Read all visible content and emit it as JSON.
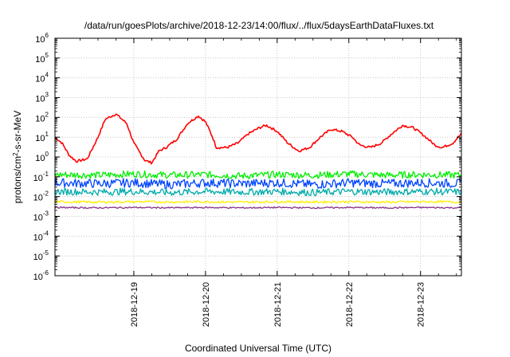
{
  "chart_data": {
    "type": "line",
    "title": "/data/run/goesPlots/archive/2018-12-23/14:00/flux/../flux/5daysEarthDataFluxes.txt",
    "xlabel": "Coordinated Universal Time (UTC)",
    "ylabel": {
      "base": "protons/cm",
      "sup": "2",
      "rest": "-s-sr-MeV"
    },
    "y_scale": "log",
    "ylim_exp": [
      -6,
      6
    ],
    "y_ticks": [
      {
        "exp": 6,
        "base": "10",
        "sup": "6"
      },
      {
        "exp": 5,
        "base": "10",
        "sup": "5"
      },
      {
        "exp": 4,
        "base": "10",
        "sup": "4"
      },
      {
        "exp": 3,
        "base": "10",
        "sup": "3"
      },
      {
        "exp": 2,
        "base": "10",
        "sup": "2"
      },
      {
        "exp": 1,
        "base": "10",
        "sup": "1"
      },
      {
        "exp": 0,
        "base": "10",
        "sup": "0"
      },
      {
        "exp": -1,
        "base": "10",
        "sup": "-1"
      },
      {
        "exp": -2,
        "base": "10",
        "sup": "-2"
      },
      {
        "exp": -3,
        "base": "10",
        "sup": "-3"
      },
      {
        "exp": -4,
        "base": "10",
        "sup": "-4"
      },
      {
        "exp": -5,
        "base": "10",
        "sup": "-5"
      },
      {
        "exp": -6,
        "base": "10",
        "sup": "-6"
      }
    ],
    "x_range_days": [
      17.9,
      23.57
    ],
    "x_ticks": [
      {
        "day": 19,
        "label": "2018-12-19"
      },
      {
        "day": 20,
        "label": "2018-12-20"
      },
      {
        "day": 21,
        "label": "2018-12-21"
      },
      {
        "day": 22,
        "label": "2018-12-22"
      },
      {
        "day": 23,
        "label": "2018-12-23"
      }
    ],
    "grid": true,
    "series": [
      {
        "color": "#ff0000",
        "x_days": [
          17.9,
          18.0,
          18.1,
          18.2,
          18.35,
          18.5,
          18.6,
          18.75,
          18.9,
          19.0,
          19.15,
          19.25,
          19.35,
          19.45,
          19.6,
          19.75,
          19.9,
          20.0,
          20.1,
          20.15,
          20.3,
          20.45,
          20.6,
          20.75,
          20.85,
          21.0,
          21.15,
          21.3,
          21.45,
          21.6,
          21.75,
          21.9,
          22.05,
          22.15,
          22.3,
          22.45,
          22.6,
          22.75,
          22.9,
          23.05,
          23.2,
          23.3,
          23.45,
          23.57
        ],
        "y_values": [
          10,
          5,
          1.2,
          0.6,
          0.8,
          10,
          80,
          150,
          50,
          5,
          0.7,
          0.5,
          2,
          3,
          8,
          50,
          120,
          60,
          10,
          3,
          3,
          5,
          15,
          30,
          40,
          20,
          5,
          2,
          3,
          10,
          25,
          20,
          10,
          4,
          3,
          5,
          15,
          40,
          30,
          12,
          4,
          3,
          5,
          15
        ]
      },
      {
        "color": "#00ee00",
        "x_days": [
          17.9,
          18.5,
          19.0,
          19.5,
          20.0,
          20.5,
          21.0,
          21.5,
          22.0,
          22.5,
          23.0,
          23.57
        ],
        "y_values": [
          0.13,
          0.12,
          0.14,
          0.12,
          0.13,
          0.11,
          0.13,
          0.12,
          0.14,
          0.12,
          0.13,
          0.12
        ]
      },
      {
        "color": "#0044ff",
        "x_days": [
          17.9,
          18.5,
          19.0,
          19.5,
          20.0,
          20.5,
          21.0,
          21.5,
          22.0,
          22.5,
          23.0,
          23.57
        ],
        "y_values": [
          0.05,
          0.045,
          0.05,
          0.04,
          0.05,
          0.045,
          0.05,
          0.04,
          0.05,
          0.045,
          0.05,
          0.045
        ]
      },
      {
        "color": "#00aaaa",
        "x_days": [
          17.9,
          18.5,
          19.0,
          19.5,
          20.0,
          20.5,
          21.0,
          21.5,
          22.0,
          22.5,
          23.0,
          23.57
        ],
        "y_values": [
          0.018,
          0.017,
          0.018,
          0.016,
          0.018,
          0.017,
          0.018,
          0.016,
          0.018,
          0.017,
          0.018,
          0.017
        ]
      },
      {
        "color": "#ffee00",
        "x_days": [
          17.9,
          18.5,
          19.0,
          19.5,
          20.0,
          20.5,
          21.0,
          21.5,
          22.0,
          22.5,
          23.0,
          23.57
        ],
        "y_values": [
          0.0055,
          0.0052,
          0.0055,
          0.0053,
          0.0055,
          0.0052,
          0.0055,
          0.0053,
          0.0055,
          0.0052,
          0.0055,
          0.0053
        ]
      },
      {
        "color": "#883388",
        "x_days": [
          17.9,
          18.5,
          19.0,
          19.5,
          20.0,
          20.5,
          21.0,
          21.5,
          22.0,
          22.5,
          23.0,
          23.57
        ],
        "y_values": [
          0.0028,
          0.0027,
          0.0028,
          0.0027,
          0.0028,
          0.0027,
          0.0028,
          0.0027,
          0.0028,
          0.0027,
          0.0028,
          0.0027
        ]
      }
    ]
  }
}
